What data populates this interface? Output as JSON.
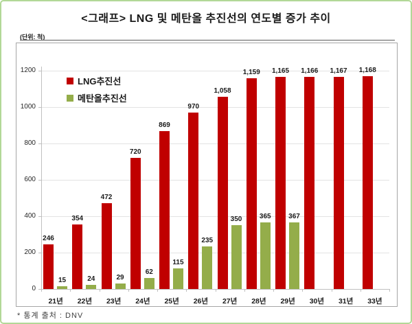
{
  "title": "<그래프> LNG 및 메탄올 추진선의 연도별 증가 추이",
  "unit_label": "(단위: 척)",
  "footer": "* 통계 출처 : DNV",
  "colors": {
    "lng_bar": "#C00000",
    "methanol_bar": "#94AD4A",
    "grid_line": "#E3E3E3",
    "axis_line": "#BFBFBF",
    "chart_border": "#A6A6A6",
    "page_border": "#B2D897",
    "unit_rule": "#595959"
  },
  "chart_data": {
    "type": "bar",
    "title": "<그래프> LNG 및 메탄올 추진선의 연도별 증가 추이",
    "unit": "척",
    "categories": [
      "21년",
      "22년",
      "23년",
      "24년",
      "25년",
      "26년",
      "27년",
      "28년",
      "29년",
      "30년",
      "31년",
      "33년"
    ],
    "series": [
      {
        "name": "LNG추진선",
        "color_key": "lng_bar",
        "values": [
          246,
          354,
          472,
          720,
          869,
          970,
          1058,
          1159,
          1165,
          1166,
          1167,
          1168
        ]
      },
      {
        "name": "메탄올추진선",
        "color_key": "methanol_bar",
        "values": [
          15,
          24,
          29,
          62,
          115,
          235,
          350,
          365,
          367,
          null,
          null,
          null
        ]
      }
    ],
    "ylim": [
      0,
      1200
    ],
    "yticks": [
      0,
      200,
      400,
      600,
      800,
      1000,
      1200
    ],
    "grid": true,
    "legend_position": "top-left-inside",
    "source": "DNV"
  }
}
